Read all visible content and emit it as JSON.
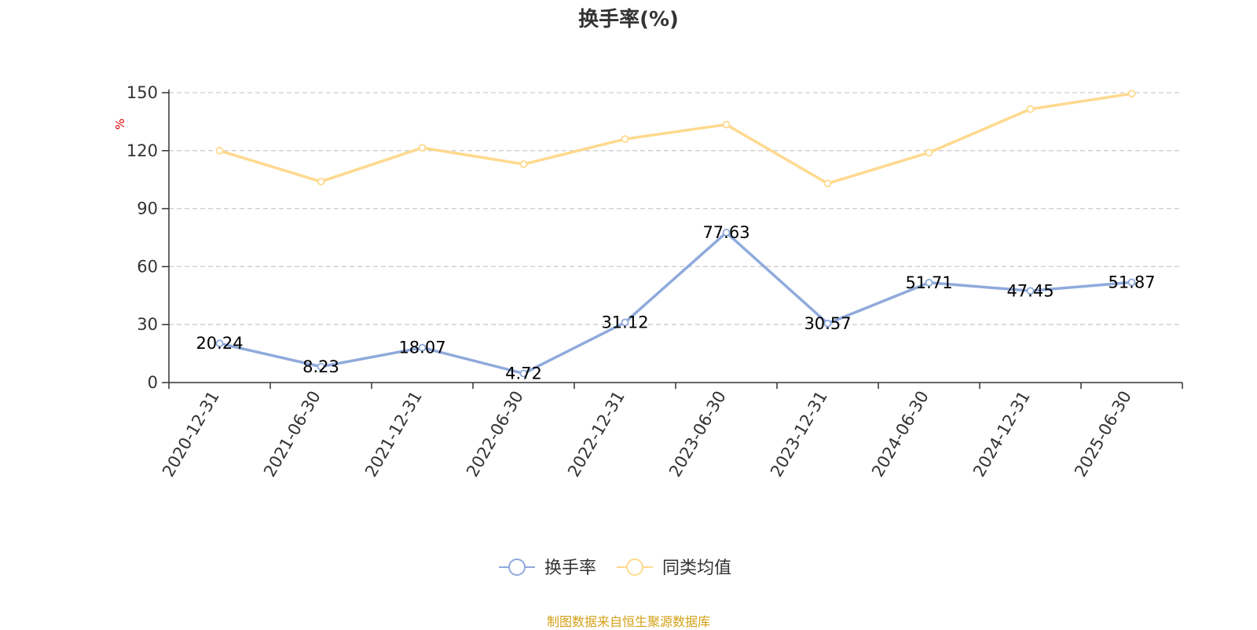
{
  "title": "换手率(%)",
  "source": "制图数据来自恒生聚源数据库",
  "colors": {
    "series1": "#8FAADC",
    "series2": "#FFD98E",
    "source": "#D4A017",
    "unit": "#e60000"
  },
  "chart_data": {
    "type": "line",
    "title": "换手率(%)",
    "ylabel": "%",
    "ylim": [
      0,
      150
    ],
    "yticks": [
      0,
      30,
      60,
      90,
      120,
      150
    ],
    "grid": true,
    "legend_position": "bottom",
    "categories": [
      "2020-12-31",
      "2021-06-30",
      "2021-12-31",
      "2022-06-30",
      "2022-12-31",
      "2023-06-30",
      "2023-12-31",
      "2024-06-30",
      "2024-12-31",
      "2025-06-30"
    ],
    "series": [
      {
        "name": "换手率",
        "values": [
          20.24,
          8.23,
          18.07,
          4.72,
          31.12,
          77.63,
          30.57,
          51.71,
          47.45,
          51.87
        ],
        "labels": [
          "20.24",
          "8.23",
          "18.07",
          "4.72",
          "31.12",
          "77.63",
          "30.57",
          "51.71",
          "47.45",
          "51.87"
        ]
      },
      {
        "name": "同类均值",
        "values": [
          120,
          104,
          121.5,
          113,
          126,
          133.5,
          103,
          119,
          141.5,
          149.5
        ]
      }
    ]
  }
}
